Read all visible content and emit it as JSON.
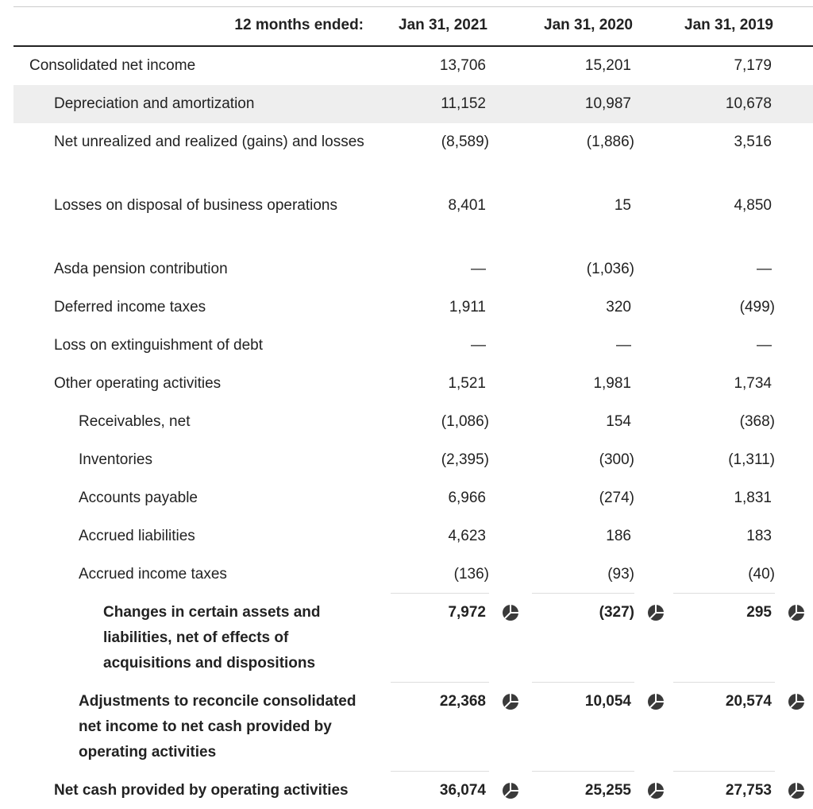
{
  "table": {
    "header": [
      "12 months ended:",
      "Jan 31, 2021",
      "Jan 31, 2020",
      "Jan 31, 2019"
    ],
    "rows": [
      {
        "label": "Consolidated net income",
        "values": [
          "13,706",
          "15,201",
          "7,179"
        ]
      },
      {
        "label": "Depreciation and amortization",
        "values": [
          "11,152",
          "10,987",
          "10,678"
        ]
      },
      {
        "label": "Net unrealized and realized (gains) and losses",
        "values": [
          "(8,589)",
          "(1,886)",
          "3,516"
        ]
      },
      {
        "label": "Losses on disposal of business operations",
        "values": [
          "8,401",
          "15",
          "4,850"
        ]
      },
      {
        "label": "Asda pension contribution",
        "values": [
          "—",
          "(1,036)",
          "—"
        ]
      },
      {
        "label": "Deferred income taxes",
        "values": [
          "1,911",
          "320",
          "(499)"
        ]
      },
      {
        "label": "Loss on extinguishment of debt",
        "values": [
          "—",
          "—",
          "—"
        ]
      },
      {
        "label": "Other operating activities",
        "values": [
          "1,521",
          "1,981",
          "1,734"
        ]
      },
      {
        "label": "Receivables, net",
        "values": [
          "(1,086)",
          "154",
          "(368)"
        ]
      },
      {
        "label": "Inventories",
        "values": [
          "(2,395)",
          "(300)",
          "(1,311)"
        ]
      },
      {
        "label": "Accounts payable",
        "values": [
          "6,966",
          "(274)",
          "1,831"
        ]
      },
      {
        "label": "Accrued liabilities",
        "values": [
          "4,623",
          "186",
          "183"
        ]
      },
      {
        "label": "Accrued income taxes",
        "values": [
          "(136)",
          "(93)",
          "(40)"
        ]
      },
      {
        "label": "Changes in certain assets and liabilities, net of effects of acquisitions and dispositions",
        "values": [
          "7,972",
          "(327)",
          "295"
        ]
      },
      {
        "label": "Adjustments to reconcile consolidated net income to net cash provided by operating activities",
        "values": [
          "22,368",
          "10,054",
          "20,574"
        ]
      },
      {
        "label": "Net cash provided by operating activities",
        "values": [
          "36,074",
          "25,255",
          "27,753"
        ]
      }
    ]
  }
}
